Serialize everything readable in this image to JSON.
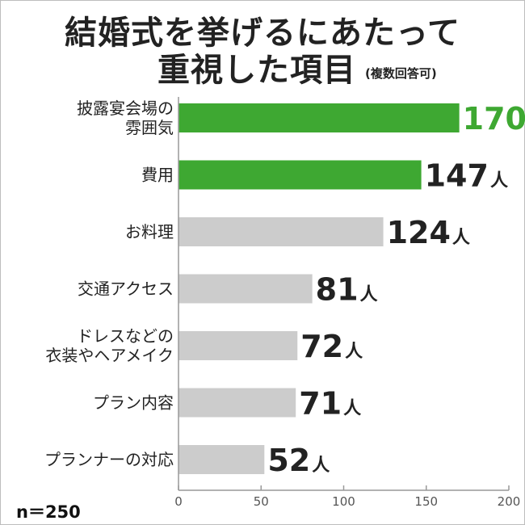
{
  "chart_data": {
    "type": "bar",
    "orientation": "horizontal",
    "title": "結婚式を挙げるにあたって重視した項目",
    "title_line1": "結婚式を挙げるにあたって",
    "title_line2": "重視した項目",
    "subtitle": "(複数回答可)",
    "categories": [
      [
        "披露宴会場の",
        "雰囲気"
      ],
      [
        "費用"
      ],
      [
        "お料理"
      ],
      [
        "交通アクセス"
      ],
      [
        "ドレスなどの",
        "衣装やヘアメイク"
      ],
      [
        "プラン内容"
      ],
      [
        "プランナーの対応"
      ]
    ],
    "values": [
      170,
      147,
      124,
      81,
      72,
      71,
      52
    ],
    "value_unit": "人",
    "highlight": [
      true,
      true,
      false,
      false,
      false,
      false,
      false
    ],
    "xlim": [
      0,
      200
    ],
    "xticks": [
      "0",
      "50",
      "100",
      "150",
      "200"
    ],
    "legend": "none",
    "grid": false
  },
  "colors": {
    "highlight_bar": "#3ea832",
    "normal_bar": "#cccccc",
    "highlight_label_top": "#3ea832",
    "text": "#222222",
    "axis": "#999999"
  },
  "note": "n＝250"
}
